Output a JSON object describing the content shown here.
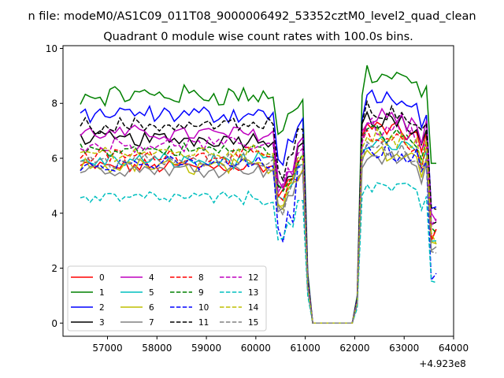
{
  "suptitle": "n file: modeM0/AS1C09_011T08_9000006492_53352cztM0_level2_quad_clean",
  "chart_data": {
    "type": "line",
    "title": "Quadrant 0 module wise count rates with 100.0s bins.",
    "xlabel": "",
    "ylabel": "",
    "x_offset_label": "+4.923e8",
    "xlim": [
      56100,
      64000
    ],
    "ylim": [
      -0.48,
      10.1
    ],
    "xticks": [
      57000,
      58000,
      59000,
      60000,
      61000,
      62000,
      63000,
      64000
    ],
    "yticks": [
      0,
      2,
      4,
      6,
      8,
      10
    ],
    "grid": false,
    "legend": {
      "placement": "lower-left",
      "columns": 4
    },
    "series": [
      {
        "name": "0",
        "color": "#ff0000",
        "dash": "solid",
        "base": 5.7,
        "amp": 0.22,
        "dip": 4.6,
        "high": 7.2,
        "hamp": 0.35
      },
      {
        "name": "1",
        "color": "#008000",
        "dash": "solid",
        "base": 8.3,
        "amp": 0.35,
        "dip": 7.0,
        "high": 9.2,
        "hamp": 0.4
      },
      {
        "name": "2",
        "color": "#0000ff",
        "dash": "solid",
        "base": 7.6,
        "amp": 0.3,
        "dip": 5.8,
        "high": 8.2,
        "hamp": 0.4
      },
      {
        "name": "3",
        "color": "#000000",
        "dash": "solid",
        "base": 6.7,
        "amp": 0.25,
        "dip": 5.0,
        "high": 7.5,
        "hamp": 0.35
      },
      {
        "name": "4",
        "color": "#bf00bf",
        "dash": "solid",
        "base": 6.9,
        "amp": 0.25,
        "dip": 5.2,
        "high": 7.6,
        "hamp": 0.35
      },
      {
        "name": "5",
        "color": "#00bfbf",
        "dash": "solid",
        "base": 5.9,
        "amp": 0.25,
        "dip": 4.4,
        "high": 6.6,
        "hamp": 0.35
      },
      {
        "name": "6",
        "color": "#bfbf00",
        "dash": "solid",
        "base": 5.7,
        "amp": 0.25,
        "dip": 4.3,
        "high": 6.4,
        "hamp": 0.35
      },
      {
        "name": "7",
        "color": "#808080",
        "dash": "solid",
        "base": 5.6,
        "amp": 0.22,
        "dip": 4.1,
        "high": 6.2,
        "hamp": 0.3
      },
      {
        "name": "8",
        "color": "#ff0000",
        "dash": "dashed",
        "base": 6.1,
        "amp": 0.22,
        "dip": 4.6,
        "high": 6.8,
        "hamp": 0.35
      },
      {
        "name": "9",
        "color": "#008000",
        "dash": "dashed",
        "base": 6.3,
        "amp": 0.22,
        "dip": 4.8,
        "high": 7.0,
        "hamp": 0.35
      },
      {
        "name": "10",
        "color": "#0000ff",
        "dash": "dashed",
        "base": 5.8,
        "amp": 0.22,
        "dip": 3.2,
        "high": 6.4,
        "hamp": 0.35
      },
      {
        "name": "11",
        "color": "#000000",
        "dash": "dashed",
        "base": 7.2,
        "amp": 0.25,
        "dip": 5.4,
        "high": 7.9,
        "hamp": 0.35
      },
      {
        "name": "12",
        "color": "#bf00bf",
        "dash": "dashed",
        "base": 6.5,
        "amp": 0.22,
        "dip": 5.0,
        "high": 7.2,
        "hamp": 0.35
      },
      {
        "name": "13",
        "color": "#00bfbf",
        "dash": "dashed",
        "base": 4.55,
        "amp": 0.22,
        "dip": 2.9,
        "high": 5.1,
        "hamp": 0.3
      },
      {
        "name": "14",
        "color": "#bfbf00",
        "dash": "dashed",
        "base": 6.2,
        "amp": 0.22,
        "dip": 4.5,
        "high": 6.9,
        "hamp": 0.35
      },
      {
        "name": "15",
        "color": "#808080",
        "dash": "dashed",
        "base": 5.9,
        "amp": 0.22,
        "dip": 4.2,
        "high": 6.5,
        "hamp": 0.3
      }
    ]
  }
}
